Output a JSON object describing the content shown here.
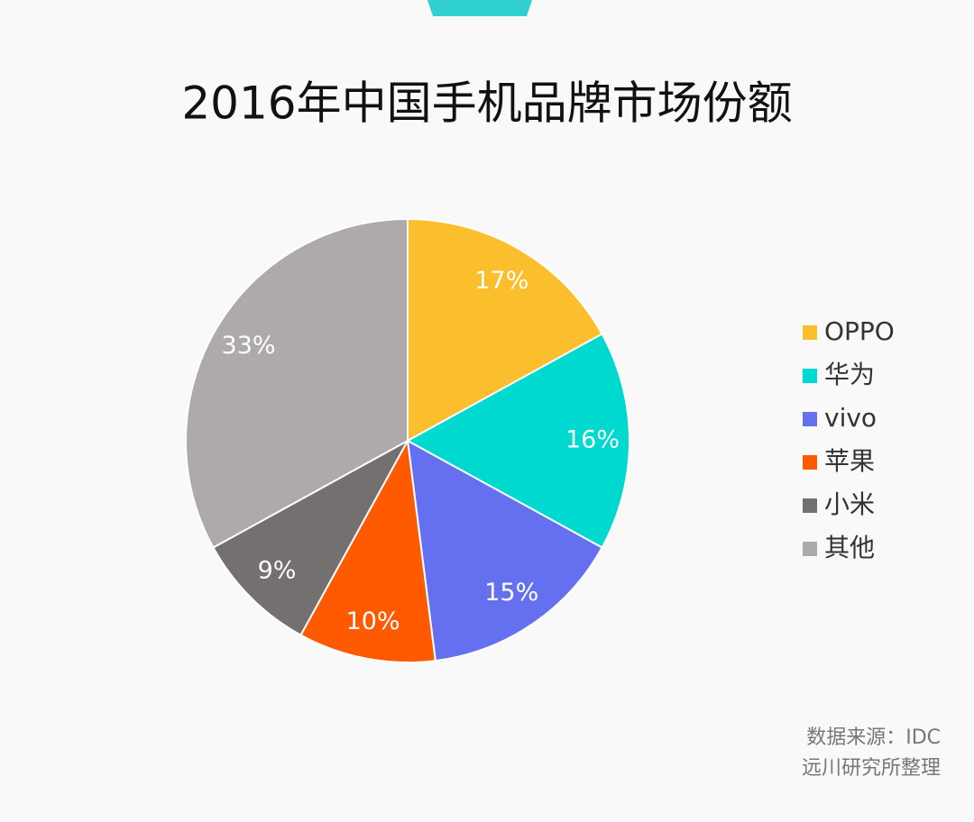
{
  "chart_data": {
    "type": "pie",
    "title": "2016年中国手机品牌市场份额",
    "categories": [
      "OPPO",
      "华为",
      "vivo",
      "苹果",
      "小米",
      "其他"
    ],
    "values": [
      17,
      16,
      15,
      10,
      9,
      33
    ],
    "value_labels": [
      "17%",
      "16%",
      "15%",
      "10%",
      "9%",
      "33%"
    ],
    "colors": [
      "#fbbf2e",
      "#00d9cf",
      "#6470f0",
      "#ff5a00",
      "#747070",
      "#aeaaa9"
    ],
    "legend": "right",
    "notes": [
      "数据来源：IDC",
      "远川研究所整理"
    ]
  }
}
